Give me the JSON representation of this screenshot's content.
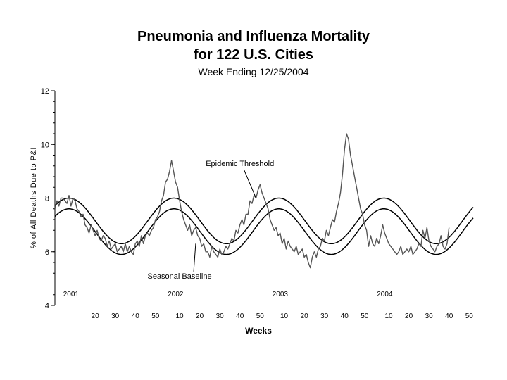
{
  "chart_data": {
    "type": "line",
    "title": "Pneumonia and Influenza Mortality",
    "title_line2": "for 122 U.S. Cities",
    "subtitle": "Week Ending 12/25/2004",
    "xlabel": "Weeks",
    "ylabel": "% of All Deaths Due to P&I",
    "ylim": [
      4,
      12
    ],
    "y_ticks": [
      "12",
      "10",
      "8",
      "6",
      "4"
    ],
    "x_ticks": [
      {
        "label": "20",
        "week": 20
      },
      {
        "label": "30",
        "week": 30
      },
      {
        "label": "40",
        "week": 40
      },
      {
        "label": "50",
        "week": 50
      },
      {
        "label": "10",
        "week": 62
      },
      {
        "label": "20",
        "week": 72
      },
      {
        "label": "30",
        "week": 82
      },
      {
        "label": "40",
        "week": 92
      },
      {
        "label": "50",
        "week": 102
      },
      {
        "label": "10",
        "week": 114
      },
      {
        "label": "20",
        "week": 124
      },
      {
        "label": "30",
        "week": 134
      },
      {
        "label": "40",
        "week": 144
      },
      {
        "label": "50",
        "week": 154
      },
      {
        "label": "10",
        "week": 166
      },
      {
        "label": "20",
        "week": 176
      },
      {
        "label": "30",
        "week": 186
      },
      {
        "label": "40",
        "week": 196
      },
      {
        "label": "50",
        "week": 206
      }
    ],
    "year_labels": [
      {
        "label": "2001",
        "week": 8
      },
      {
        "label": "2002",
        "week": 60
      },
      {
        "label": "2003",
        "week": 112
      },
      {
        "label": "2004",
        "week": 164
      }
    ],
    "xlim": [
      0,
      208
    ],
    "grid": false,
    "annotations": [
      {
        "text": "Epidemic Threshold",
        "week": 92,
        "value": 9.2,
        "points_to_week": 100,
        "points_to_value": 8.0
      },
      {
        "text": "Seasonal Baseline",
        "week": 62,
        "value": 5.0,
        "points_to_week": 70,
        "points_to_value": 6.3
      }
    ],
    "series": [
      {
        "name": "Seasonal Baseline",
        "color": "#000000",
        "mean": 6.75,
        "amplitude": 0.85,
        "peak_week": 7,
        "period": 52.18,
        "x_start": 0,
        "x_end": 208
      },
      {
        "name": "Epidemic Threshold",
        "color": "#000000",
        "mean": 7.15,
        "amplitude": 0.85,
        "peak_week": 7,
        "period": 52.18,
        "x_start": 0,
        "x_end": 208
      },
      {
        "name": "",
        "color": "#555555",
        "x_start": 0,
        "values": [
          7.6,
          7.9,
          7.7,
          8.0,
          8.0,
          7.9,
          7.8,
          8.1,
          7.7,
          8.0,
          7.9,
          7.6,
          7.5,
          7.3,
          7.4,
          7.0,
          6.9,
          6.7,
          7.0,
          6.8,
          6.6,
          6.8,
          6.5,
          6.4,
          6.6,
          6.5,
          6.2,
          6.4,
          6.1,
          6.2,
          6.3,
          6.0,
          6.1,
          6.2,
          6.0,
          6.3,
          6.0,
          6.2,
          6.0,
          5.9,
          6.3,
          6.4,
          6.2,
          6.6,
          6.3,
          6.6,
          6.7,
          6.6,
          6.8,
          6.9,
          7.2,
          7.3,
          7.5,
          7.9,
          8.1,
          8.6,
          8.7,
          9.0,
          9.4,
          9.0,
          8.6,
          8.4,
          7.9,
          7.5,
          7.2,
          7.0,
          6.8,
          7.0,
          6.6,
          6.8,
          6.9,
          6.6,
          6.5,
          6.2,
          6.3,
          6.0,
          6.0,
          5.8,
          6.2,
          6.0,
          5.9,
          5.8,
          6.1,
          5.9,
          6.0,
          6.2,
          6.1,
          6.3,
          6.5,
          6.4,
          6.8,
          6.7,
          7.0,
          7.2,
          7.0,
          7.4,
          7.4,
          7.9,
          7.8,
          8.1,
          8.0,
          8.3,
          8.5,
          8.2,
          8.0,
          7.8,
          7.6,
          7.2,
          7.0,
          6.8,
          6.9,
          6.6,
          6.7,
          6.3,
          6.5,
          6.1,
          6.4,
          6.2,
          6.1,
          6.0,
          6.2,
          5.9,
          6.0,
          6.1,
          5.8,
          5.9,
          5.6,
          5.4,
          5.8,
          6.0,
          5.8,
          6.1,
          6.2,
          6.5,
          6.4,
          6.8,
          6.6,
          6.9,
          7.2,
          7.1,
          7.5,
          7.8,
          8.2,
          8.9,
          9.8,
          10.4,
          10.2,
          9.6,
          9.2,
          8.8,
          8.4,
          8.0,
          7.6,
          7.4,
          7.0,
          6.8,
          6.2,
          6.6,
          6.3,
          6.2,
          6.5,
          6.3,
          6.6,
          7.0,
          6.7,
          6.5,
          6.3,
          6.2,
          6.1,
          6.0,
          5.9,
          6.0,
          6.2,
          5.9,
          6.0,
          6.1,
          6.0,
          6.2,
          5.9,
          6.0,
          6.1,
          6.3,
          6.2,
          6.8,
          6.5,
          6.9,
          6.4,
          6.2,
          6.1,
          6.0,
          6.2,
          6.3,
          6.6,
          6.2,
          6.1,
          6.3,
          6.9
        ]
      }
    ]
  }
}
